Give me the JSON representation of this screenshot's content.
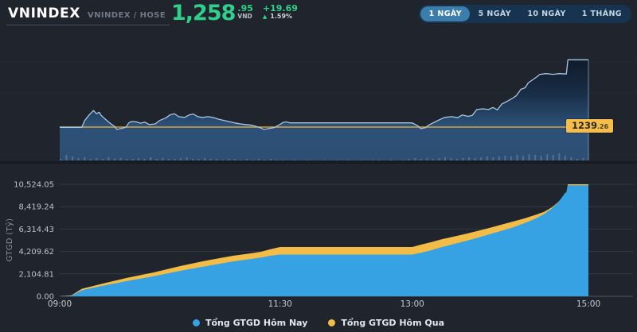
{
  "header": {
    "title": "VNINDEX",
    "subtitle": "VNINDEX / HOSE",
    "price_main": "1,258",
    "price_decimal": ".95",
    "currency": "VND",
    "change": "+19.69",
    "change_pct": "1.59%"
  },
  "range_buttons": [
    {
      "label": "1 NGÀY",
      "active": true
    },
    {
      "label": "5 NGÀY",
      "active": false
    },
    {
      "label": "10 NGÀY",
      "active": false
    },
    {
      "label": "1 THÁNG",
      "active": false
    }
  ],
  "colors": {
    "green": "#2fd08a",
    "ref_line": "#d9a43a",
    "label_box_bg": "#f5bd4a",
    "price_line": "#a9c6e2",
    "blue_area": "#36a2e3",
    "yellow_area": "#f3bc47",
    "button_bar_bg": "#163450",
    "active_button_bg": "#3b7dab"
  },
  "chart_data": [
    {
      "type": "line",
      "name": "vnindex-intraday-price",
      "x_unit": "minutes since 09:00",
      "xlim": [
        0,
        360
      ],
      "ylim": [
        1229.5,
        1266.0
      ],
      "grid": "faint",
      "reference_value": 1239.26,
      "reference_label_main": "1239",
      "reference_label_small": ".26",
      "close_value": 1258.95,
      "points": [
        [
          0,
          1239.2
        ],
        [
          15,
          1239.2
        ],
        [
          17,
          1241.2
        ],
        [
          20,
          1242.8
        ],
        [
          23,
          1244.1
        ],
        [
          25,
          1243.2
        ],
        [
          27,
          1243.6
        ],
        [
          28,
          1242.8
        ],
        [
          31,
          1241.6
        ],
        [
          34,
          1240.5
        ],
        [
          37,
          1239.6
        ],
        [
          39,
          1238.6
        ],
        [
          42,
          1238.9
        ],
        [
          45,
          1239.2
        ],
        [
          47,
          1240.5
        ],
        [
          49,
          1240.9
        ],
        [
          52,
          1240.8
        ],
        [
          55,
          1240.4
        ],
        [
          58,
          1240.7
        ],
        [
          61,
          1240.0
        ],
        [
          65,
          1240.2
        ],
        [
          68,
          1241.2
        ],
        [
          72,
          1241.9
        ],
        [
          75,
          1242.8
        ],
        [
          78,
          1243.2
        ],
        [
          81,
          1242.3
        ],
        [
          85,
          1242.1
        ],
        [
          88,
          1242.8
        ],
        [
          91,
          1243.1
        ],
        [
          94,
          1242.3
        ],
        [
          97,
          1242.1
        ],
        [
          101,
          1242.3
        ],
        [
          105,
          1242.0
        ],
        [
          108,
          1241.6
        ],
        [
          112,
          1241.2
        ],
        [
          116,
          1240.8
        ],
        [
          119,
          1240.5
        ],
        [
          123,
          1240.2
        ],
        [
          127,
          1240.0
        ],
        [
          131,
          1239.8
        ],
        [
          134,
          1239.4
        ],
        [
          137,
          1239.0
        ],
        [
          139,
          1238.6
        ],
        [
          143,
          1238.9
        ],
        [
          146,
          1239.1
        ],
        [
          149,
          1239.8
        ],
        [
          152,
          1240.6
        ],
        [
          154,
          1240.8
        ],
        [
          157,
          1240.5
        ],
        [
          240,
          1240.5
        ],
        [
          244,
          1239.6
        ],
        [
          246,
          1238.8
        ],
        [
          249,
          1239.1
        ],
        [
          251,
          1239.8
        ],
        [
          256,
          1240.9
        ],
        [
          262,
          1242.1
        ],
        [
          267,
          1242.3
        ],
        [
          271,
          1242.0
        ],
        [
          274,
          1242.8
        ],
        [
          278,
          1242.4
        ],
        [
          281,
          1242.7
        ],
        [
          284,
          1244.4
        ],
        [
          288,
          1244.6
        ],
        [
          292,
          1244.4
        ],
        [
          295,
          1245.0
        ],
        [
          298,
          1244.3
        ],
        [
          301,
          1246.0
        ],
        [
          305,
          1246.9
        ],
        [
          308,
          1247.6
        ],
        [
          311,
          1248.5
        ],
        [
          314,
          1250.3
        ],
        [
          317,
          1250.8
        ],
        [
          319,
          1252.2
        ],
        [
          322,
          1253.1
        ],
        [
          325,
          1254.0
        ],
        [
          327,
          1254.7
        ],
        [
          331,
          1254.9
        ],
        [
          336,
          1254.7
        ],
        [
          340,
          1254.9
        ],
        [
          345,
          1254.8
        ],
        [
          346,
          1258.95
        ],
        [
          360,
          1258.95
        ]
      ],
      "volume_bars": [
        2,
        7,
        5,
        3,
        4,
        2,
        3,
        2,
        4,
        2,
        3,
        2,
        2,
        3,
        2,
        4,
        2,
        3,
        2,
        2,
        3,
        4,
        2,
        2,
        3,
        2,
        2,
        1,
        2,
        2,
        1,
        2,
        1,
        2,
        1,
        2,
        1,
        1,
        0,
        1,
        0,
        1,
        0,
        0,
        1,
        0,
        1,
        0,
        1,
        0,
        1,
        0,
        1,
        1,
        0,
        1,
        0,
        1,
        2,
        3,
        2,
        3,
        2,
        3,
        4,
        3,
        2,
        3,
        4,
        3,
        4,
        5,
        4,
        5,
        6,
        5,
        7,
        6,
        8,
        7,
        6,
        8,
        7,
        9,
        6,
        4,
        2,
        3
      ]
    },
    {
      "type": "area",
      "name": "cumulative-traded-value",
      "ylabel": "GTGD (Tỷ)",
      "x_unit": "minutes since 09:00",
      "xlim": [
        0,
        360
      ],
      "ylim": [
        0,
        10524.05
      ],
      "grid": "horizontal",
      "legend_position": "bottom",
      "yticks": [
        0,
        2104.81,
        4209.62,
        6314.43,
        8419.24,
        10524.05
      ],
      "ytick_labels": [
        "0.00",
        "2,104.81",
        "4,209.62",
        "6,314.43",
        "8,419.24",
        "10,524.05"
      ],
      "x_ticks": [
        {
          "t": 0,
          "label": "09:00"
        },
        {
          "t": 150,
          "label": "11:30"
        },
        {
          "t": 240,
          "label": "13:00"
        },
        {
          "t": 360,
          "label": "15:00"
        }
      ],
      "series": [
        {
          "name": "Tổng GTGD Hôm Qua",
          "color": "#f3bc47",
          "points": [
            [
              0,
              0
            ],
            [
              8,
              100
            ],
            [
              15,
              700
            ],
            [
              28,
              1150
            ],
            [
              46,
              1730
            ],
            [
              64,
              2240
            ],
            [
              82,
              2840
            ],
            [
              100,
              3360
            ],
            [
              118,
              3810
            ],
            [
              130,
              4030
            ],
            [
              137,
              4180
            ],
            [
              143,
              4400
            ],
            [
              150,
              4630
            ],
            [
              240,
              4630
            ],
            [
              246,
              4850
            ],
            [
              253,
              5080
            ],
            [
              260,
              5350
            ],
            [
              268,
              5600
            ],
            [
              276,
              5850
            ],
            [
              284,
              6120
            ],
            [
              292,
              6400
            ],
            [
              300,
              6700
            ],
            [
              308,
              7000
            ],
            [
              316,
              7300
            ],
            [
              324,
              7650
            ],
            [
              330,
              7950
            ],
            [
              335,
              8350
            ],
            [
              339,
              8800
            ],
            [
              342,
              9250
            ],
            [
              344,
              9600
            ],
            [
              345,
              9700
            ],
            [
              346,
              10524.05
            ],
            [
              360,
              10524.05
            ]
          ]
        },
        {
          "name": "Tổng GTGD Hôm Nay",
          "color": "#36a2e3",
          "points": [
            [
              0,
              0
            ],
            [
              8,
              60
            ],
            [
              15,
              560
            ],
            [
              28,
              950
            ],
            [
              46,
              1430
            ],
            [
              64,
              1880
            ],
            [
              82,
              2390
            ],
            [
              100,
              2840
            ],
            [
              118,
              3280
            ],
            [
              130,
              3500
            ],
            [
              137,
              3640
            ],
            [
              143,
              3800
            ],
            [
              150,
              3920
            ],
            [
              240,
              3920
            ],
            [
              246,
              4080
            ],
            [
              253,
              4330
            ],
            [
              260,
              4620
            ],
            [
              268,
              4900
            ],
            [
              276,
              5180
            ],
            [
              284,
              5480
            ],
            [
              292,
              5800
            ],
            [
              300,
              6120
            ],
            [
              308,
              6450
            ],
            [
              316,
              6850
            ],
            [
              324,
              7300
            ],
            [
              330,
              7750
            ],
            [
              335,
              8250
            ],
            [
              339,
              8750
            ],
            [
              342,
              9300
            ],
            [
              344,
              9700
            ],
            [
              345,
              9780
            ],
            [
              346,
              10430
            ],
            [
              360,
              10430
            ]
          ]
        }
      ]
    }
  ]
}
